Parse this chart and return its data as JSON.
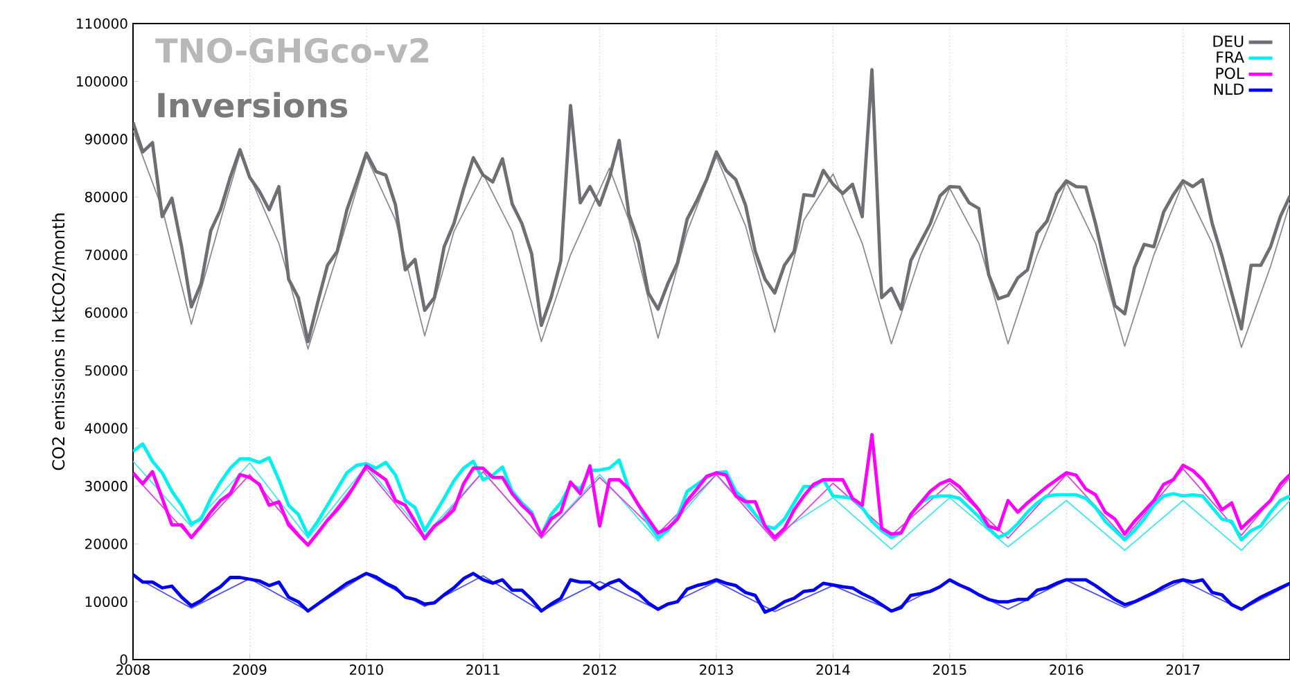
{
  "chart_data": {
    "type": "line",
    "title": "TNO-GHGco-v2",
    "subtitle": "Inversions",
    "ylabel": "CO2 emissions in ktCO2/month",
    "x": [
      "2008-01",
      "2008-02",
      "2008-03",
      "2008-04",
      "2008-05",
      "2008-06",
      "2008-07",
      "2008-08",
      "2008-09",
      "2008-10",
      "2008-11",
      "2008-12",
      "2009-01",
      "2009-02",
      "2009-03",
      "2009-04",
      "2009-05",
      "2009-06",
      "2009-07",
      "2009-08",
      "2009-09",
      "2009-10",
      "2009-11",
      "2009-12",
      "2010-01",
      "2010-02",
      "2010-03",
      "2010-04",
      "2010-05",
      "2010-06",
      "2010-07",
      "2010-08",
      "2010-09",
      "2010-10",
      "2010-11",
      "2010-12",
      "2011-01",
      "2011-02",
      "2011-03",
      "2011-04",
      "2011-05",
      "2011-06",
      "2011-07",
      "2011-08",
      "2011-09",
      "2011-10",
      "2011-11",
      "2011-12",
      "2012-01",
      "2012-02",
      "2012-03",
      "2012-04",
      "2012-05",
      "2012-06",
      "2012-07",
      "2012-08",
      "2012-09",
      "2012-10",
      "2012-11",
      "2012-12",
      "2013-01",
      "2013-02",
      "2013-03",
      "2013-04",
      "2013-05",
      "2013-06",
      "2013-07",
      "2013-08",
      "2013-09",
      "2013-10",
      "2013-11",
      "2013-12",
      "2014-01",
      "2014-02",
      "2014-03",
      "2014-04",
      "2014-05",
      "2014-06",
      "2014-07",
      "2014-08",
      "2014-09",
      "2014-10",
      "2014-11",
      "2014-12",
      "2015-01",
      "2015-02",
      "2015-03",
      "2015-04",
      "2015-05",
      "2015-06",
      "2015-07",
      "2015-08",
      "2015-09",
      "2015-10",
      "2015-11",
      "2015-12",
      "2016-01",
      "2016-02",
      "2016-03",
      "2016-04",
      "2016-05",
      "2016-06",
      "2016-07",
      "2016-08",
      "2016-09",
      "2016-10",
      "2016-11",
      "2016-12",
      "2017-01",
      "2017-02",
      "2017-03",
      "2017-04",
      "2017-05",
      "2017-06",
      "2017-07",
      "2017-08",
      "2017-09",
      "2017-10",
      "2017-11",
      "2017-12"
    ],
    "xlim": [
      "2008-01",
      "2017-12"
    ],
    "xticks": [
      "2008",
      "2009",
      "2010",
      "2011",
      "2012",
      "2013",
      "2014",
      "2015",
      "2016",
      "2017"
    ],
    "ylim": [
      0,
      110000
    ],
    "yticks": [
      0,
      10000,
      20000,
      30000,
      40000,
      50000,
      60000,
      70000,
      80000,
      90000,
      100000,
      110000
    ],
    "grid": "x",
    "legend": "top right",
    "line_style": "solid",
    "marker": "none",
    "series": [
      {
        "x": [
          "2008-01",
          "2008-04",
          "2008-07",
          "2008-10",
          "2008-12",
          "2009-04",
          "2009-07",
          "2009-10",
          "2010-01",
          "2010-04",
          "2010-07",
          "2010-10",
          "2011-01",
          "2011-04",
          "2011-07",
          "2011-10",
          "2012-02",
          "2012-04",
          "2012-07",
          "2012-10",
          "2013-01",
          "2013-04",
          "2013-07",
          "2013-10",
          "2014-01",
          "2014-04",
          "2014-07",
          "2014-10",
          "2015-01",
          "2015-04",
          "2015-07",
          "2015-10",
          "2016-01",
          "2016-04",
          "2016-07",
          "2016-10",
          "2017-01",
          "2017-04",
          "2017-07",
          "2017-10",
          "2017-12"
        ],
        "color": "#8c8c90",
        "values": [
          91500,
          78000,
          58000,
          76000,
          87500,
          72000,
          53700,
          70000,
          87000,
          76000,
          56000,
          74000,
          84000,
          74000,
          55000,
          70000,
          85000,
          76000,
          55600,
          74000,
          87000,
          75000,
          56600,
          76000,
          84000,
          72000,
          54600,
          70000,
          81500,
          72000,
          54600,
          70000,
          82500,
          72000,
          54200,
          70000,
          82500,
          72000,
          54000,
          68000,
          79000
        ]
      },
      {
        "x": [
          "2008-01",
          "2008-07",
          "2009-01",
          "2009-07",
          "2010-01",
          "2010-07",
          "2011-01",
          "2011-07",
          "2012-01",
          "2012-07",
          "2013-01",
          "2013-07",
          "2014-01",
          "2014-07",
          "2015-01",
          "2015-07",
          "2016-01",
          "2016-07",
          "2017-01",
          "2017-07",
          "2017-12"
        ],
        "color": "#40e8e8",
        "values": [
          34300,
          23000,
          34000,
          21000,
          33500,
          21500,
          32500,
          21000,
          32000,
          20500,
          32000,
          21500,
          28000,
          19100,
          28000,
          19500,
          27500,
          18900,
          27500,
          18900,
          27500
        ]
      },
      {
        "x": [
          "2008-01",
          "2008-07",
          "2009-01",
          "2009-07",
          "2010-01",
          "2010-07",
          "2011-01",
          "2011-07",
          "2012-01",
          "2012-07",
          "2013-01",
          "2013-07",
          "2014-01",
          "2014-07",
          "2015-01",
          "2015-07",
          "2016-01",
          "2016-07",
          "2017-01",
          "2017-07",
          "2017-12"
        ],
        "color": "#e040e0",
        "values": [
          32000,
          21000,
          32000,
          19800,
          33000,
          20800,
          32500,
          21000,
          31500,
          21800,
          32000,
          20500,
          30500,
          21500,
          30500,
          21000,
          32000,
          21000,
          33000,
          21500,
          31500
        ]
      },
      {
        "x": [
          "2008-01",
          "2008-07",
          "2009-01",
          "2009-07",
          "2010-01",
          "2010-07",
          "2011-01",
          "2011-07",
          "2012-01",
          "2012-07",
          "2013-01",
          "2013-07",
          "2014-01",
          "2014-07",
          "2015-01",
          "2015-07",
          "2016-01",
          "2016-07",
          "2017-01",
          "2017-07",
          "2017-12"
        ],
        "color": "#5050f0",
        "values": [
          14500,
          8900,
          14000,
          8400,
          14800,
          9200,
          14500,
          8400,
          13500,
          8600,
          13500,
          8300,
          12800,
          8500,
          13600,
          8700,
          13700,
          9000,
          13600,
          8600,
          13000
        ]
      },
      {
        "name": "DEU",
        "color": "#6e6e74",
        "values": [
          92900,
          87800,
          89400,
          76600,
          79800,
          71400,
          61000,
          65000,
          74200,
          77800,
          83400,
          88200,
          83400,
          81000,
          77800,
          81800,
          65800,
          62600,
          55000,
          61800,
          68200,
          70600,
          77800,
          82600,
          87600,
          84400,
          83800,
          78600,
          67400,
          69200,
          60400,
          62600,
          71400,
          75400,
          81400,
          86800,
          83800,
          82600,
          86600,
          78800,
          75400,
          70200,
          57800,
          62600,
          69000,
          95800,
          79000,
          81800,
          78600,
          83400,
          89800,
          77000,
          72200,
          63400,
          60600,
          65000,
          68600,
          76200,
          79400,
          83000,
          87800,
          84600,
          83000,
          78600,
          70600,
          65800,
          63400,
          68200,
          70600,
          80400,
          80200,
          84600,
          82200,
          80600,
          82200,
          76600,
          102000,
          62600,
          64200,
          60600,
          69000,
          72200,
          75400,
          80200,
          81800,
          81700,
          79000,
          78000,
          66600,
          62400,
          63000,
          66000,
          67400,
          73800,
          75800,
          80600,
          82800,
          81800,
          81700,
          75400,
          68200,
          61200,
          59800,
          67800,
          71800,
          71400,
          77400,
          80400,
          82800,
          81800,
          83000,
          75400,
          69800,
          63400,
          57200,
          68200,
          68200,
          71400,
          76600,
          80200
        ]
      },
      {
        "name": "FRA",
        "color": "#00f0f0",
        "values": [
          36000,
          37300,
          34300,
          32300,
          29100,
          26700,
          23500,
          24300,
          27900,
          30700,
          33100,
          34700,
          34700,
          34100,
          34900,
          31100,
          26700,
          25100,
          21500,
          23900,
          26700,
          29500,
          32300,
          33600,
          33900,
          33100,
          34100,
          31900,
          27500,
          26300,
          22300,
          25100,
          27900,
          30900,
          33100,
          34300,
          31100,
          31900,
          33300,
          29100,
          27100,
          25500,
          21500,
          25100,
          27100,
          30300,
          29500,
          32700,
          32800,
          33100,
          34500,
          29500,
          26700,
          23500,
          21100,
          22300,
          24700,
          29100,
          30300,
          31500,
          32300,
          32500,
          29100,
          27500,
          25100,
          23100,
          22700,
          24300,
          27100,
          29900,
          29900,
          31100,
          28300,
          28100,
          27900,
          26300,
          23900,
          22300,
          21100,
          21900,
          25100,
          27100,
          28100,
          28300,
          28300,
          27900,
          26300,
          24700,
          22700,
          21100,
          21900,
          23500,
          25500,
          27100,
          28300,
          28500,
          28500,
          28500,
          27900,
          26300,
          23900,
          22300,
          20700,
          22300,
          24300,
          26700,
          28300,
          28700,
          28300,
          28500,
          28300,
          26300,
          24300,
          23900,
          20700,
          22300,
          23100,
          25500,
          27500,
          28300
        ]
      },
      {
        "name": "POL",
        "color": "#ff00ff",
        "values": [
          32300,
          30400,
          32500,
          27900,
          23300,
          23300,
          21100,
          23100,
          25500,
          27500,
          28700,
          32000,
          31500,
          30300,
          26700,
          27300,
          23300,
          21500,
          19800,
          21900,
          24100,
          25900,
          28000,
          30700,
          33500,
          32300,
          31100,
          27500,
          26700,
          23900,
          20900,
          23100,
          24300,
          25900,
          30400,
          33100,
          33100,
          31500,
          31500,
          28700,
          26700,
          25100,
          21500,
          24300,
          25500,
          30700,
          28700,
          33500,
          23100,
          31100,
          31100,
          29500,
          26700,
          24300,
          21900,
          22700,
          24300,
          27500,
          29500,
          31700,
          32300,
          31900,
          28300,
          27300,
          27300,
          23100,
          21100,
          22700,
          25900,
          28300,
          30300,
          31100,
          31100,
          31100,
          27900,
          26700,
          38900,
          22700,
          21700,
          21900,
          25100,
          27100,
          29100,
          30400,
          31100,
          29900,
          27900,
          25900,
          23100,
          22500,
          27500,
          25500,
          27100,
          28500,
          29900,
          31100,
          32300,
          31900,
          29500,
          28500,
          25500,
          24300,
          21700,
          23900,
          25700,
          27500,
          30300,
          31100,
          33600,
          32700,
          31100,
          28700,
          25900,
          27100,
          22700,
          24300,
          25900,
          27500,
          30300,
          32000
        ]
      },
      {
        "name": "NLD",
        "color": "#0000f0",
        "values": [
          14700,
          13400,
          13400,
          12400,
          12700,
          10800,
          9300,
          10200,
          11600,
          12600,
          14200,
          14200,
          13900,
          13600,
          12800,
          13400,
          10800,
          10000,
          8400,
          9600,
          10800,
          12000,
          13200,
          14000,
          14900,
          14300,
          13200,
          12400,
          10800,
          10400,
          9600,
          9800,
          11200,
          12400,
          14000,
          14900,
          13800,
          13200,
          13800,
          12000,
          12000,
          10400,
          8400,
          9600,
          10600,
          13800,
          13400,
          13400,
          12200,
          13200,
          13800,
          12400,
          11400,
          9800,
          8700,
          9600,
          10000,
          12200,
          12800,
          13200,
          13800,
          13200,
          12800,
          11600,
          11100,
          8200,
          8900,
          10000,
          10600,
          11800,
          12000,
          13200,
          12900,
          12600,
          12400,
          11400,
          10600,
          9500,
          8400,
          9000,
          11100,
          11400,
          11800,
          12600,
          13800,
          12900,
          12200,
          11200,
          10400,
          10000,
          10000,
          10400,
          10400,
          12000,
          12400,
          13200,
          13800,
          13800,
          13800,
          12800,
          11600,
          10400,
          9500,
          10000,
          10800,
          11600,
          12600,
          13400,
          13800,
          13400,
          13800,
          11600,
          11200,
          9500,
          8700,
          9800,
          10800,
          11600,
          12400,
          13200
        ]
      }
    ]
  }
}
